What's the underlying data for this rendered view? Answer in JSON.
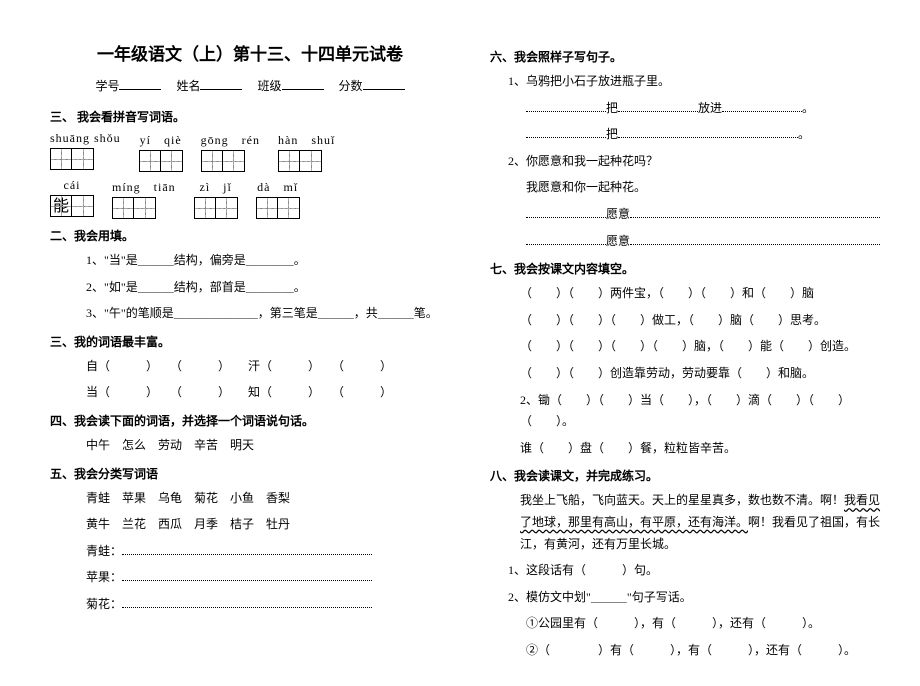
{
  "title": "一年级语文（上）第十三、十四单元试卷",
  "meta": {
    "id_label": "学号",
    "name_label": "姓名",
    "class_label": "班级",
    "score_label": "分数"
  },
  "left": {
    "s1": {
      "heading": "三、 我会看拼音写词语。",
      "row1": [
        {
          "py": "shuāng shǒu",
          "n": 2
        },
        {
          "py": "yí　qiè",
          "n": 2
        },
        {
          "py": "gōng　rén",
          "n": 2
        },
        {
          "py": "hàn　shuǐ",
          "n": 2
        }
      ],
      "row2": [
        {
          "py": "cái",
          "n": 1,
          "pre": "能"
        },
        {
          "py": "míng　tiān",
          "n": 2
        },
        {
          "py": "zì　jǐ",
          "n": 2
        },
        {
          "py": "dà　mǐ",
          "n": 2
        }
      ]
    },
    "s2": {
      "heading": "二、我会用填。",
      "items": [
        "1、\"当\"是＿＿＿结构，偏旁是＿＿＿＿。",
        "2、\"如\"是＿＿＿结构，部首是＿＿＿＿。",
        "3、\"午\"的笔顺是＿＿＿＿＿＿＿，第三笔是＿＿＿，共＿＿＿笔。"
      ]
    },
    "s3": {
      "heading": "三、我的词语最丰富。",
      "rows": [
        [
          "自（　　　）",
          "（　　　）",
          "汗（　　　）",
          "（　　　）"
        ],
        [
          "当（　　　）",
          "（　　　）",
          "知（　　　）",
          "（　　　）"
        ]
      ]
    },
    "s4": {
      "heading": "四、我会读下面的词语，并选择一个词语说句话。",
      "words": "中午　怎么　劳动　辛苦　明天"
    },
    "s5": {
      "heading": "五、我会分类写词语",
      "line1": "青蛙　苹果　乌龟　菊花　小鱼　香梨",
      "line2": "黄牛　兰花　西瓜　月季　桔子　牡丹",
      "cats": [
        "青蛙：",
        "苹果：",
        "菊花："
      ]
    }
  },
  "right": {
    "s6": {
      "heading": "六、我会照样子写句子。",
      "i1": "1、乌鸦把小石子放进瓶子里。",
      "t1a": "把",
      "t1b": "放进",
      "i2": "2、你愿意和我一起种花吗？",
      "i2b": "我愿意和你一起种花。",
      "t2a": "愿意",
      "t2b": "愿意"
    },
    "s7": {
      "heading": "七、我会按课文内容填空。",
      "lines": [
        "（　　）（　　）两件宝，（　　）（　　）和（　　）脑",
        "（　　）（　　）（　　）做工，（　　）脑（　　）思考。",
        "（　　）（　　）（　　）（　　）脑，（　　）能（　　）创造。",
        "（　　）（　　）创造靠劳动，劳动要靠（　　）和脑。",
        "2、锄（　　）（　　）当（　　），（　　）滴（　　）（　　）（　　）。",
        "谁（　　）盘（　　）餐，粒粒皆辛苦。"
      ]
    },
    "s8": {
      "heading": "八、我会读课文，并完成练习。",
      "p1": "我坐上飞船，飞向蓝天。天上的星星真多，数也数不清。啊！",
      "p1u": "我看见了地球，那里有高山，有平原，还有海洋。",
      "p1tail": "啊！我看见了祖国，有长江，有黄河，还有万里长城。",
      "q1": "1、这段话有（　　　）句。",
      "q2": "2、模仿文中划\"＿＿＿\"句子写话。",
      "a1": "①公园里有（　　　），有（　　　），还有（　　　）。",
      "a2": "②（　　　　）有（　　　），有（　　　），还有（　　　）。"
    }
  }
}
